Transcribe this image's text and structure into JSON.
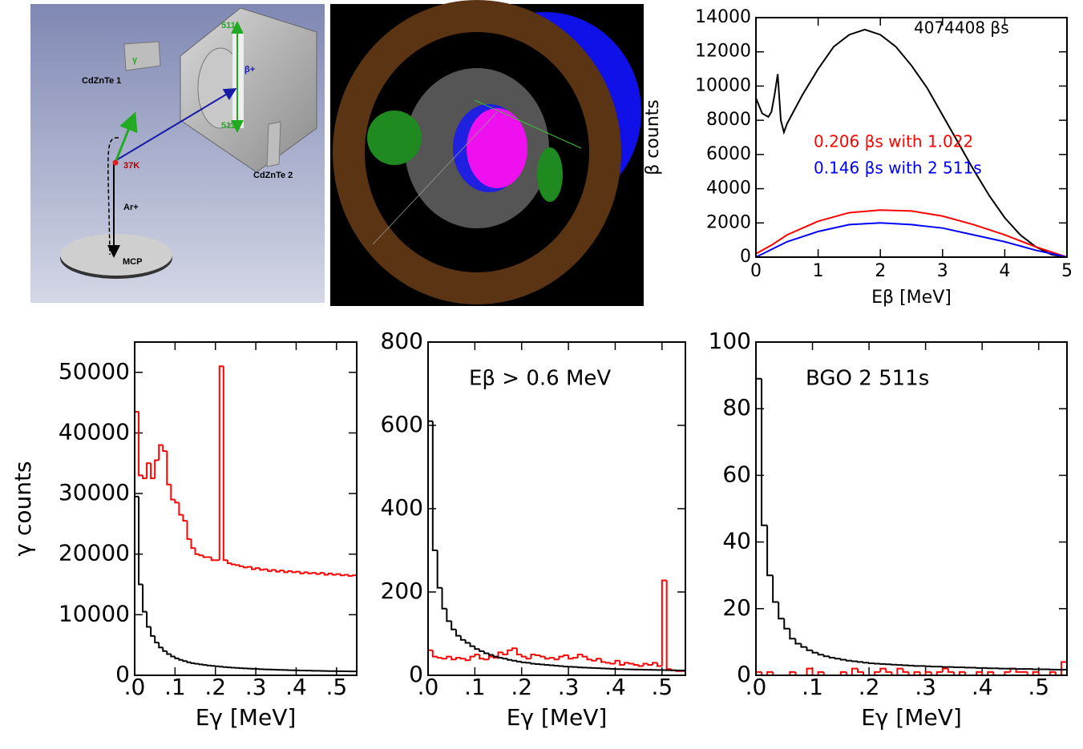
{
  "detector_diagram": {
    "gamma": "γ",
    "detector_1": "CdZnTe 1",
    "detector_2": "CdZnTe 2",
    "annihilation_top": "511",
    "annihilation_bottom": "511",
    "positron": "β+",
    "source": "37K",
    "ion": "Ar+",
    "mcp": "MCP"
  },
  "chart_data": [
    {
      "type": "line",
      "y_label": "β counts",
      "x_label": "Eβ [MeV]",
      "annotations": [
        {
          "text": "4074408 βs",
          "color": "#000000"
        },
        {
          "text": "0.206 βs with 1.022",
          "color": "#ff0000"
        },
        {
          "text": "0.146 βs with 2 511s",
          "color": "#0000ff"
        }
      ],
      "xlim": [
        0,
        5
      ],
      "xticks": [
        0,
        1,
        2,
        3,
        4,
        5
      ],
      "ylim": [
        0,
        14000
      ],
      "yticks": [
        0,
        2000,
        4000,
        6000,
        8000,
        10000,
        12000,
        14000
      ],
      "series": [
        {
          "color": "#000000",
          "x": [
            0,
            0.1,
            0.2,
            0.25,
            0.3,
            0.35,
            0.4,
            0.45,
            0.5,
            0.75,
            1.0,
            1.25,
            1.5,
            1.75,
            2.0,
            2.25,
            2.5,
            2.75,
            3.0,
            3.25,
            3.5,
            3.75,
            4.0,
            4.25,
            4.5,
            4.75,
            5.0
          ],
          "values": [
            9300,
            8400,
            8200,
            8500,
            9500,
            10700,
            8000,
            7300,
            7800,
            9500,
            11000,
            12300,
            13000,
            13300,
            13000,
            12300,
            11200,
            9900,
            8300,
            6700,
            5100,
            3600,
            2300,
            1300,
            600,
            150,
            0
          ]
        },
        {
          "color": "#ff0000",
          "x": [
            0,
            0.25,
            0.5,
            1.0,
            1.5,
            2.0,
            2.5,
            3.0,
            3.5,
            4.0,
            4.5,
            5.0
          ],
          "values": [
            200,
            700,
            1300,
            2100,
            2600,
            2750,
            2700,
            2400,
            1900,
            1300,
            600,
            0
          ]
        },
        {
          "color": "#0000ff",
          "x": [
            0,
            0.5,
            1.0,
            1.5,
            2.0,
            2.5,
            3.0,
            3.5,
            4.0,
            4.5,
            5.0
          ],
          "values": [
            0,
            900,
            1500,
            1900,
            2000,
            1900,
            1700,
            1300,
            900,
            400,
            0
          ]
        }
      ]
    },
    {
      "type": "histogram",
      "y_label": "γ counts",
      "x_label": "Eγ [MeV]",
      "xlim": [
        0,
        0.55
      ],
      "xticks": [
        {
          "value": 0,
          "label": ".0"
        },
        {
          "value": 0.1,
          "label": ".1"
        },
        {
          "value": 0.2,
          "label": ".2"
        },
        {
          "value": 0.3,
          "label": ".3"
        },
        {
          "value": 0.4,
          "label": ".4"
        },
        {
          "value": 0.5,
          "label": ".5"
        }
      ],
      "ylim": [
        0,
        55000
      ],
      "yticks": [
        0,
        10000,
        20000,
        30000,
        40000,
        50000
      ],
      "bins": [
        0,
        0.01,
        0.02,
        0.03,
        0.04,
        0.05,
        0.06,
        0.07,
        0.08,
        0.09,
        0.1,
        0.11,
        0.12,
        0.13,
        0.14,
        0.15,
        0.16,
        0.17,
        0.18,
        0.19,
        0.2,
        0.21,
        0.22,
        0.23,
        0.24,
        0.25,
        0.26,
        0.27,
        0.28,
        0.29,
        0.3,
        0.31,
        0.32,
        0.33,
        0.34,
        0.35,
        0.36,
        0.37,
        0.38,
        0.39,
        0.4,
        0.41,
        0.42,
        0.43,
        0.44,
        0.45,
        0.46,
        0.47,
        0.48,
        0.49,
        0.5,
        0.51,
        0.52,
        0.53,
        0.54,
        0.55
      ],
      "series": [
        {
          "color": "#ff0000",
          "values": [
            43500,
            33000,
            32500,
            35000,
            32500,
            35500,
            38000,
            37000,
            31500,
            29000,
            28500,
            26500,
            25500,
            22500,
            21000,
            20000,
            19800,
            19500,
            19500,
            19000,
            19000,
            51000,
            19000,
            18500,
            18300,
            18200,
            18000,
            17800,
            17900,
            17500,
            17700,
            17400,
            17500,
            17200,
            17400,
            17100,
            17300,
            17000,
            17200,
            17000,
            17100,
            16800,
            17000,
            16800,
            16900,
            16700,
            16900,
            16600,
            16800,
            16600,
            16700,
            16500,
            16600,
            16400,
            16500
          ]
        },
        {
          "color": "#000000",
          "values": [
            29500,
            15000,
            10500,
            8000,
            6500,
            5400,
            4600,
            4000,
            3500,
            3100,
            2800,
            2550,
            2350,
            2150,
            2000,
            1900,
            1800,
            1700,
            1620,
            1550,
            1480,
            1420,
            1360,
            1310,
            1260,
            1220,
            1180,
            1140,
            1100,
            1070,
            1040,
            1010,
            980,
            960,
            940,
            910,
            890,
            870,
            850,
            830,
            810,
            800,
            780,
            770,
            750,
            740,
            720,
            710,
            700,
            690,
            680,
            670,
            660,
            650,
            640
          ]
        }
      ]
    },
    {
      "type": "histogram",
      "x_label": "Eγ [MeV]",
      "annotations": [
        {
          "text": "Eβ > 0.6 MeV",
          "color": "#000000"
        }
      ],
      "xlim": [
        0,
        0.55
      ],
      "xticks": [
        {
          "value": 0,
          "label": ".0"
        },
        {
          "value": 0.1,
          "label": ".1"
        },
        {
          "value": 0.2,
          "label": ".2"
        },
        {
          "value": 0.3,
          "label": ".3"
        },
        {
          "value": 0.4,
          "label": ".4"
        },
        {
          "value": 0.5,
          "label": ".5"
        }
      ],
      "ylim": [
        0,
        800
      ],
      "yticks": [
        0,
        200,
        400,
        600,
        800
      ],
      "bins": [
        0,
        0.01,
        0.02,
        0.03,
        0.04,
        0.05,
        0.06,
        0.07,
        0.08,
        0.09,
        0.1,
        0.11,
        0.12,
        0.13,
        0.14,
        0.15,
        0.16,
        0.17,
        0.18,
        0.19,
        0.2,
        0.21,
        0.22,
        0.23,
        0.24,
        0.25,
        0.26,
        0.27,
        0.28,
        0.29,
        0.3,
        0.31,
        0.32,
        0.33,
        0.34,
        0.35,
        0.36,
        0.37,
        0.38,
        0.39,
        0.4,
        0.41,
        0.42,
        0.43,
        0.44,
        0.45,
        0.46,
        0.47,
        0.48,
        0.49,
        0.5,
        0.51,
        0.52,
        0.53,
        0.54,
        0.55
      ],
      "series": [
        {
          "color": "#ff0000",
          "values": [
            60,
            45,
            42,
            40,
            45,
            38,
            42,
            40,
            36,
            45,
            50,
            40,
            38,
            45,
            42,
            55,
            50,
            60,
            65,
            50,
            45,
            40,
            50,
            48,
            45,
            40,
            42,
            38,
            45,
            48,
            40,
            42,
            50,
            45,
            38,
            35,
            40,
            32,
            30,
            28,
            35,
            25,
            30,
            28,
            25,
            22,
            28,
            25,
            30,
            22,
            228,
            15,
            12,
            10,
            10
          ]
        },
        {
          "color": "#000000",
          "values": [
            610,
            300,
            210,
            160,
            130,
            110,
            95,
            85,
            78,
            70,
            63,
            58,
            53,
            49,
            45,
            42,
            40,
            37,
            35,
            33,
            31,
            30,
            28,
            27,
            26,
            25,
            24,
            23,
            22,
            21,
            20.5,
            20,
            19,
            18.5,
            18,
            17.5,
            17,
            16.5,
            16,
            15.5,
            15,
            14.8,
            14.5,
            14.2,
            14,
            13.8,
            13.5,
            13.2,
            13,
            12.8,
            12.5,
            12.3,
            12,
            11.8,
            11.5
          ]
        }
      ]
    },
    {
      "type": "histogram",
      "x_label": "Eγ [MeV]",
      "annotations": [
        {
          "text": "BGO 2 511s",
          "color": "#000000"
        }
      ],
      "xlim": [
        0,
        0.55
      ],
      "xticks": [
        {
          "value": 0,
          "label": ".0"
        },
        {
          "value": 0.1,
          "label": ".1"
        },
        {
          "value": 0.2,
          "label": ".2"
        },
        {
          "value": 0.3,
          "label": ".3"
        },
        {
          "value": 0.4,
          "label": ".4"
        },
        {
          "value": 0.5,
          "label": ".5"
        }
      ],
      "ylim": [
        0,
        100
      ],
      "yticks": [
        0,
        20,
        40,
        60,
        80,
        100
      ],
      "bins": [
        0,
        0.01,
        0.02,
        0.03,
        0.04,
        0.05,
        0.06,
        0.07,
        0.08,
        0.09,
        0.1,
        0.11,
        0.12,
        0.13,
        0.14,
        0.15,
        0.16,
        0.17,
        0.18,
        0.19,
        0.2,
        0.21,
        0.22,
        0.23,
        0.24,
        0.25,
        0.26,
        0.27,
        0.28,
        0.29,
        0.3,
        0.31,
        0.32,
        0.33,
        0.34,
        0.35,
        0.36,
        0.37,
        0.38,
        0.39,
        0.4,
        0.41,
        0.42,
        0.43,
        0.44,
        0.45,
        0.46,
        0.47,
        0.48,
        0.49,
        0.5,
        0.51,
        0.52,
        0.53,
        0.54,
        0.55
      ],
      "series": [
        {
          "color": "#ff0000",
          "values": [
            1,
            0,
            1,
            0,
            0,
            0,
            1,
            0,
            0,
            2,
            0,
            1,
            0,
            0,
            0,
            1,
            0,
            2,
            1,
            0,
            0,
            1,
            2,
            1,
            0,
            2,
            1,
            0,
            1,
            0,
            1,
            0,
            1,
            2,
            1,
            0,
            1,
            0,
            0,
            1,
            0,
            1,
            0,
            0,
            1,
            2,
            1,
            1,
            0,
            1,
            0,
            0,
            1,
            0,
            4
          ]
        },
        {
          "color": "#000000",
          "values": [
            89,
            45,
            30,
            22,
            17,
            14,
            11,
            9.5,
            8.5,
            7.5,
            6.8,
            6.2,
            5.7,
            5.3,
            5,
            4.7,
            4.4,
            4.2,
            4,
            3.8,
            3.6,
            3.5,
            3.4,
            3.3,
            3.2,
            3.1,
            3,
            2.9,
            2.8,
            2.8,
            2.7,
            2.6,
            2.6,
            2.5,
            2.5,
            2.4,
            2.4,
            2.3,
            2.3,
            2.2,
            2.2,
            2.1,
            2.1,
            2,
            2,
            2,
            1.9,
            1.9,
            1.9,
            1.8,
            1.8,
            1.8,
            1.7,
            1.7,
            1.7
          ]
        }
      ]
    }
  ]
}
